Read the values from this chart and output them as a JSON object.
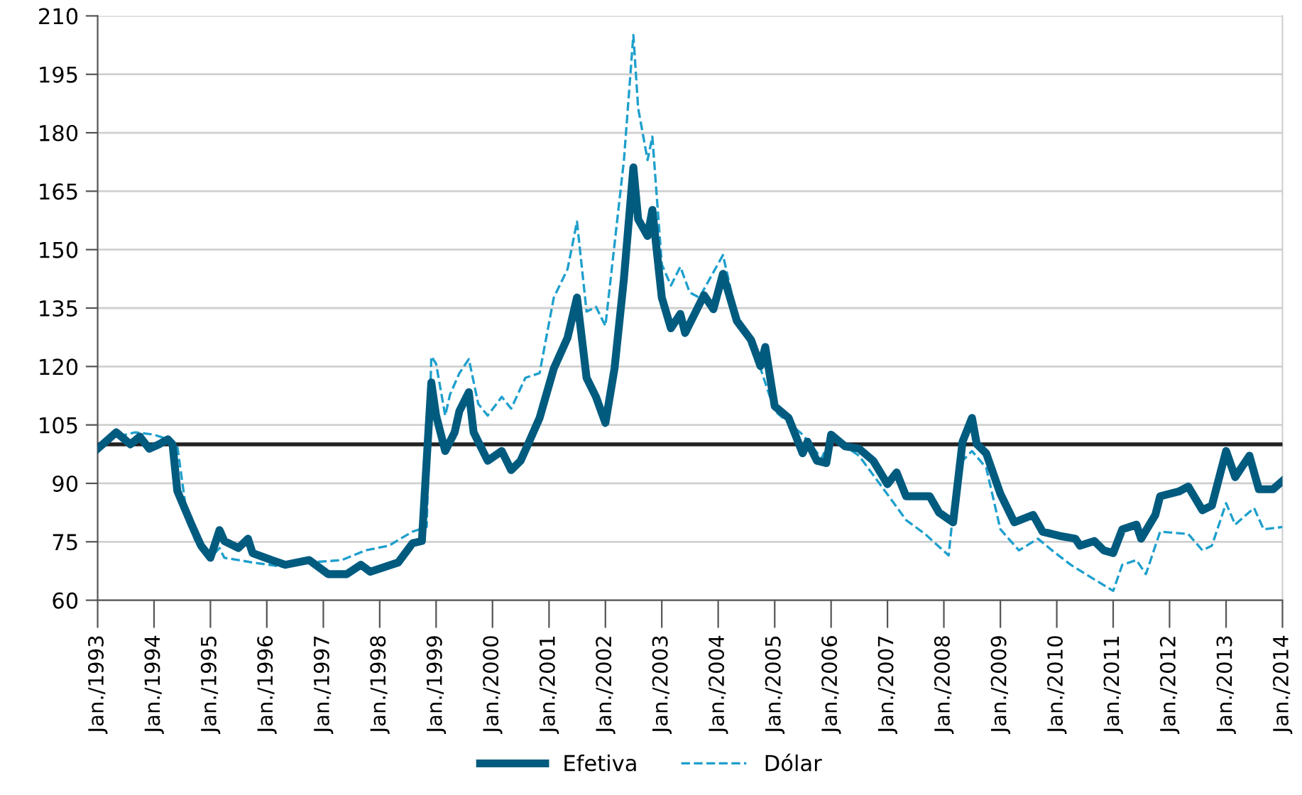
{
  "chart_data": {
    "type": "line",
    "xlim": [
      "1993-01",
      "2014-01"
    ],
    "ylim": [
      60,
      210
    ],
    "yticks": [
      60,
      75,
      90,
      105,
      120,
      135,
      150,
      165,
      180,
      195,
      210
    ],
    "xticks": [
      {
        "value": "1993-01",
        "label": "Jan./1993"
      },
      {
        "value": "1994-01",
        "label": "Jan./1994"
      },
      {
        "value": "1995-01",
        "label": "Jan./1995"
      },
      {
        "value": "1996-01",
        "label": "Jan./1996"
      },
      {
        "value": "1997-01",
        "label": "Jan./1997"
      },
      {
        "value": "1998-01",
        "label": "Jan./1998"
      },
      {
        "value": "1999-01",
        "label": "Jan./1999"
      },
      {
        "value": "2000-01",
        "label": "Jan./2000"
      },
      {
        "value": "2001-01",
        "label": "Jan./2001"
      },
      {
        "value": "2002-01",
        "label": "Jan./2002"
      },
      {
        "value": "2003-01",
        "label": "Jan./2003"
      },
      {
        "value": "2004-01",
        "label": "Jan./2004"
      },
      {
        "value": "2005-01",
        "label": "Jan./2005"
      },
      {
        "value": "2006-01",
        "label": "Jan./2006"
      },
      {
        "value": "2007-01",
        "label": "Jan./2007"
      },
      {
        "value": "2008-01",
        "label": "Jan./2008"
      },
      {
        "value": "2009-01",
        "label": "Jan./2009"
      },
      {
        "value": "2010-01",
        "label": "Jan./2010"
      },
      {
        "value": "2011-01",
        "label": "Jan./2011"
      },
      {
        "value": "2012-01",
        "label": "Jan./2012"
      },
      {
        "value": "2013-01",
        "label": "Jan./2013"
      },
      {
        "value": "2014-01",
        "label": "Jan./2014"
      }
    ],
    "grid": "y",
    "legend": "bottom",
    "marker": "none",
    "ref_lines": [
      {
        "axis": "y",
        "value": 100,
        "color": "#222222",
        "line_style": "solid"
      }
    ],
    "series": [
      {
        "name": "Efetiva",
        "color": "#005b7f",
        "line_style": "solid",
        "x": [
          "1993-01",
          "1993-05",
          "1993-08",
          "1993-10",
          "1993-12",
          "1994-02",
          "1994-04",
          "1994-05",
          "1994-06",
          "1994-09",
          "1994-11",
          "1995-01",
          "1995-03",
          "1995-04",
          "1995-07",
          "1995-09",
          "1995-10",
          "1996-02",
          "1996-05",
          "1996-10",
          "1997-02",
          "1997-06",
          "1997-09",
          "1997-11",
          "1998-05",
          "1998-08",
          "1998-10",
          "1998-12",
          "1999-01",
          "1999-03",
          "1999-05",
          "1999-06",
          "1999-08",
          "1999-09",
          "1999-12",
          "2000-03",
          "2000-05",
          "2000-07",
          "2000-09",
          "2000-11",
          "2001-02",
          "2001-05",
          "2001-07",
          "2001-09",
          "2001-11",
          "2002-01",
          "2002-03",
          "2002-05",
          "2002-07",
          "2002-08",
          "2002-10",
          "2002-11",
          "2003-01",
          "2003-03",
          "2003-05",
          "2003-06",
          "2003-10",
          "2003-12",
          "2004-02",
          "2004-05",
          "2004-08",
          "2004-10",
          "2004-11",
          "2005-01",
          "2005-04",
          "2005-07",
          "2005-08",
          "2005-10",
          "2005-12",
          "2006-01",
          "2006-04",
          "2006-07",
          "2006-10",
          "2007-01",
          "2007-03",
          "2007-05",
          "2007-08",
          "2007-10",
          "2007-12",
          "2008-03",
          "2008-05",
          "2008-07",
          "2008-08",
          "2008-10",
          "2009-01",
          "2009-04",
          "2009-08",
          "2009-10",
          "2010-02",
          "2010-05",
          "2010-06",
          "2010-09",
          "2010-11",
          "2011-01",
          "2011-03",
          "2011-06",
          "2011-07",
          "2011-10",
          "2011-11",
          "2012-03",
          "2012-05",
          "2012-08",
          "2012-10",
          "2013-01",
          "2013-03",
          "2013-06",
          "2013-08",
          "2013-11",
          "2014-01"
        ],
        "values": [
          98.9,
          103.1,
          100,
          102,
          98.9,
          100,
          101.3,
          100,
          88,
          79.4,
          74,
          70.9,
          78,
          75.2,
          73.4,
          75.8,
          72.1,
          70.3,
          69.1,
          70.3,
          66.7,
          66.7,
          69.1,
          67.3,
          69.7,
          74.6,
          75.2,
          115.9,
          107.4,
          98.3,
          103.1,
          108.6,
          113.4,
          103.1,
          95.8,
          98.3,
          93.4,
          95.8,
          101.3,
          106.8,
          119.5,
          127.4,
          137.7,
          117.1,
          112.2,
          105.5,
          119.5,
          142.6,
          171.1,
          157.8,
          153.5,
          160.2,
          137.7,
          129.8,
          133.5,
          128.6,
          138.3,
          134.7,
          143.8,
          131.7,
          126.8,
          120.1,
          125,
          109.8,
          106.8,
          97.7,
          100.7,
          95.8,
          95.2,
          102.5,
          99.5,
          98.9,
          95.8,
          89.8,
          92.8,
          86.7,
          86.7,
          86.7,
          82.5,
          80,
          100.7,
          106.8,
          100.1,
          97.7,
          87.3,
          80,
          81.9,
          77.6,
          76.4,
          75.8,
          74,
          75.2,
          72.8,
          72.1,
          78.2,
          79.4,
          75.8,
          81.9,
          86.7,
          87.9,
          89.2,
          83.1,
          84.3,
          98.3,
          91.6,
          97.1,
          88.5,
          88.5,
          90.6
        ]
      },
      {
        "name": "Dólar",
        "color": "#1e9fcc",
        "line_style": "dashed",
        "x": [
          "1993-01",
          "1993-03",
          "1993-09",
          "1994-01",
          "1994-04",
          "1994-06",
          "1994-08",
          "1994-10",
          "1995-01",
          "1995-03",
          "1995-04",
          "1995-10",
          "1996-05",
          "1996-10",
          "1997-05",
          "1997-10",
          "1998-03",
          "1998-08",
          "1998-11",
          "1998-12",
          "1999-01",
          "1999-03",
          "1999-04",
          "1999-06",
          "1999-08",
          "1999-10",
          "1999-12",
          "2000-03",
          "2000-05",
          "2000-08",
          "2000-11",
          "2001-02",
          "2001-05",
          "2001-07",
          "2001-09",
          "2001-11",
          "2002-01",
          "2002-05",
          "2002-07",
          "2002-08",
          "2002-10",
          "2002-11",
          "2003-01",
          "2003-03",
          "2003-05",
          "2003-07",
          "2003-09",
          "2004-02",
          "2004-05",
          "2004-10",
          "2005-01",
          "2005-07",
          "2005-11",
          "2006-01",
          "2006-07",
          "2007-02",
          "2007-05",
          "2007-09",
          "2008-02",
          "2008-04",
          "2008-07",
          "2008-10",
          "2009-01",
          "2009-05",
          "2009-09",
          "2009-12",
          "2010-04",
          "2010-08",
          "2011-01",
          "2011-03",
          "2011-06",
          "2011-08",
          "2011-11",
          "2012-05",
          "2012-08",
          "2012-10",
          "2013-01",
          "2013-03",
          "2013-07",
          "2013-09",
          "2014-01"
        ],
        "values": [
          98.9,
          101.3,
          103.1,
          102.5,
          101.3,
          99.5,
          81.9,
          74.6,
          70.9,
          73.4,
          70.9,
          69.7,
          68.5,
          69.7,
          70.3,
          72.8,
          74,
          77.6,
          78.8,
          122.6,
          120.7,
          107.4,
          112.8,
          118.3,
          121.9,
          110.4,
          107.4,
          112.2,
          109.2,
          117.1,
          118.3,
          137.7,
          145,
          157.2,
          134.1,
          135.3,
          130.4,
          173,
          205.1,
          186.3,
          173,
          179,
          146.2,
          140.8,
          145.6,
          139,
          137.7,
          148.6,
          132.9,
          119.5,
          108.6,
          102.5,
          96.4,
          101.9,
          97.1,
          85.5,
          80.6,
          77,
          71.5,
          94.6,
          98.3,
          94,
          78.2,
          72.8,
          75.8,
          72.8,
          69.1,
          66.1,
          62.4,
          69.1,
          70.3,
          66.7,
          77.6,
          77,
          72.8,
          74,
          84.9,
          79.4,
          83.7,
          78.2,
          78.8
        ]
      }
    ]
  }
}
